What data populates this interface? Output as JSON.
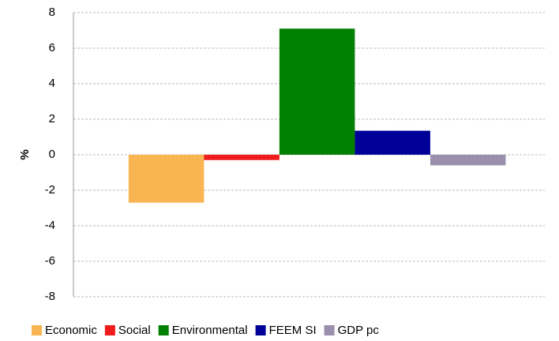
{
  "chart_data": {
    "type": "bar",
    "y_label": "%",
    "categories": [
      null
    ],
    "series": [
      {
        "name": "Economic",
        "color": "#f9b552",
        "values": [
          -2.7
        ]
      },
      {
        "name": "Social",
        "color": "#ee1c1c",
        "values": [
          -0.3
        ]
      },
      {
        "name": "Environmental",
        "color": "#008000",
        "values": [
          7.1
        ]
      },
      {
        "name": "FEEM SI",
        "color": "#000099",
        "values": [
          1.35
        ]
      },
      {
        "name": "GDP pc",
        "color": "#9b8fae",
        "values": [
          -0.6
        ]
      }
    ],
    "ylim": [
      -8,
      8
    ],
    "yticks": [
      -8,
      -6,
      -4,
      -2,
      0,
      2,
      4,
      6,
      8
    ],
    "grid": true,
    "legend": "bottom"
  }
}
